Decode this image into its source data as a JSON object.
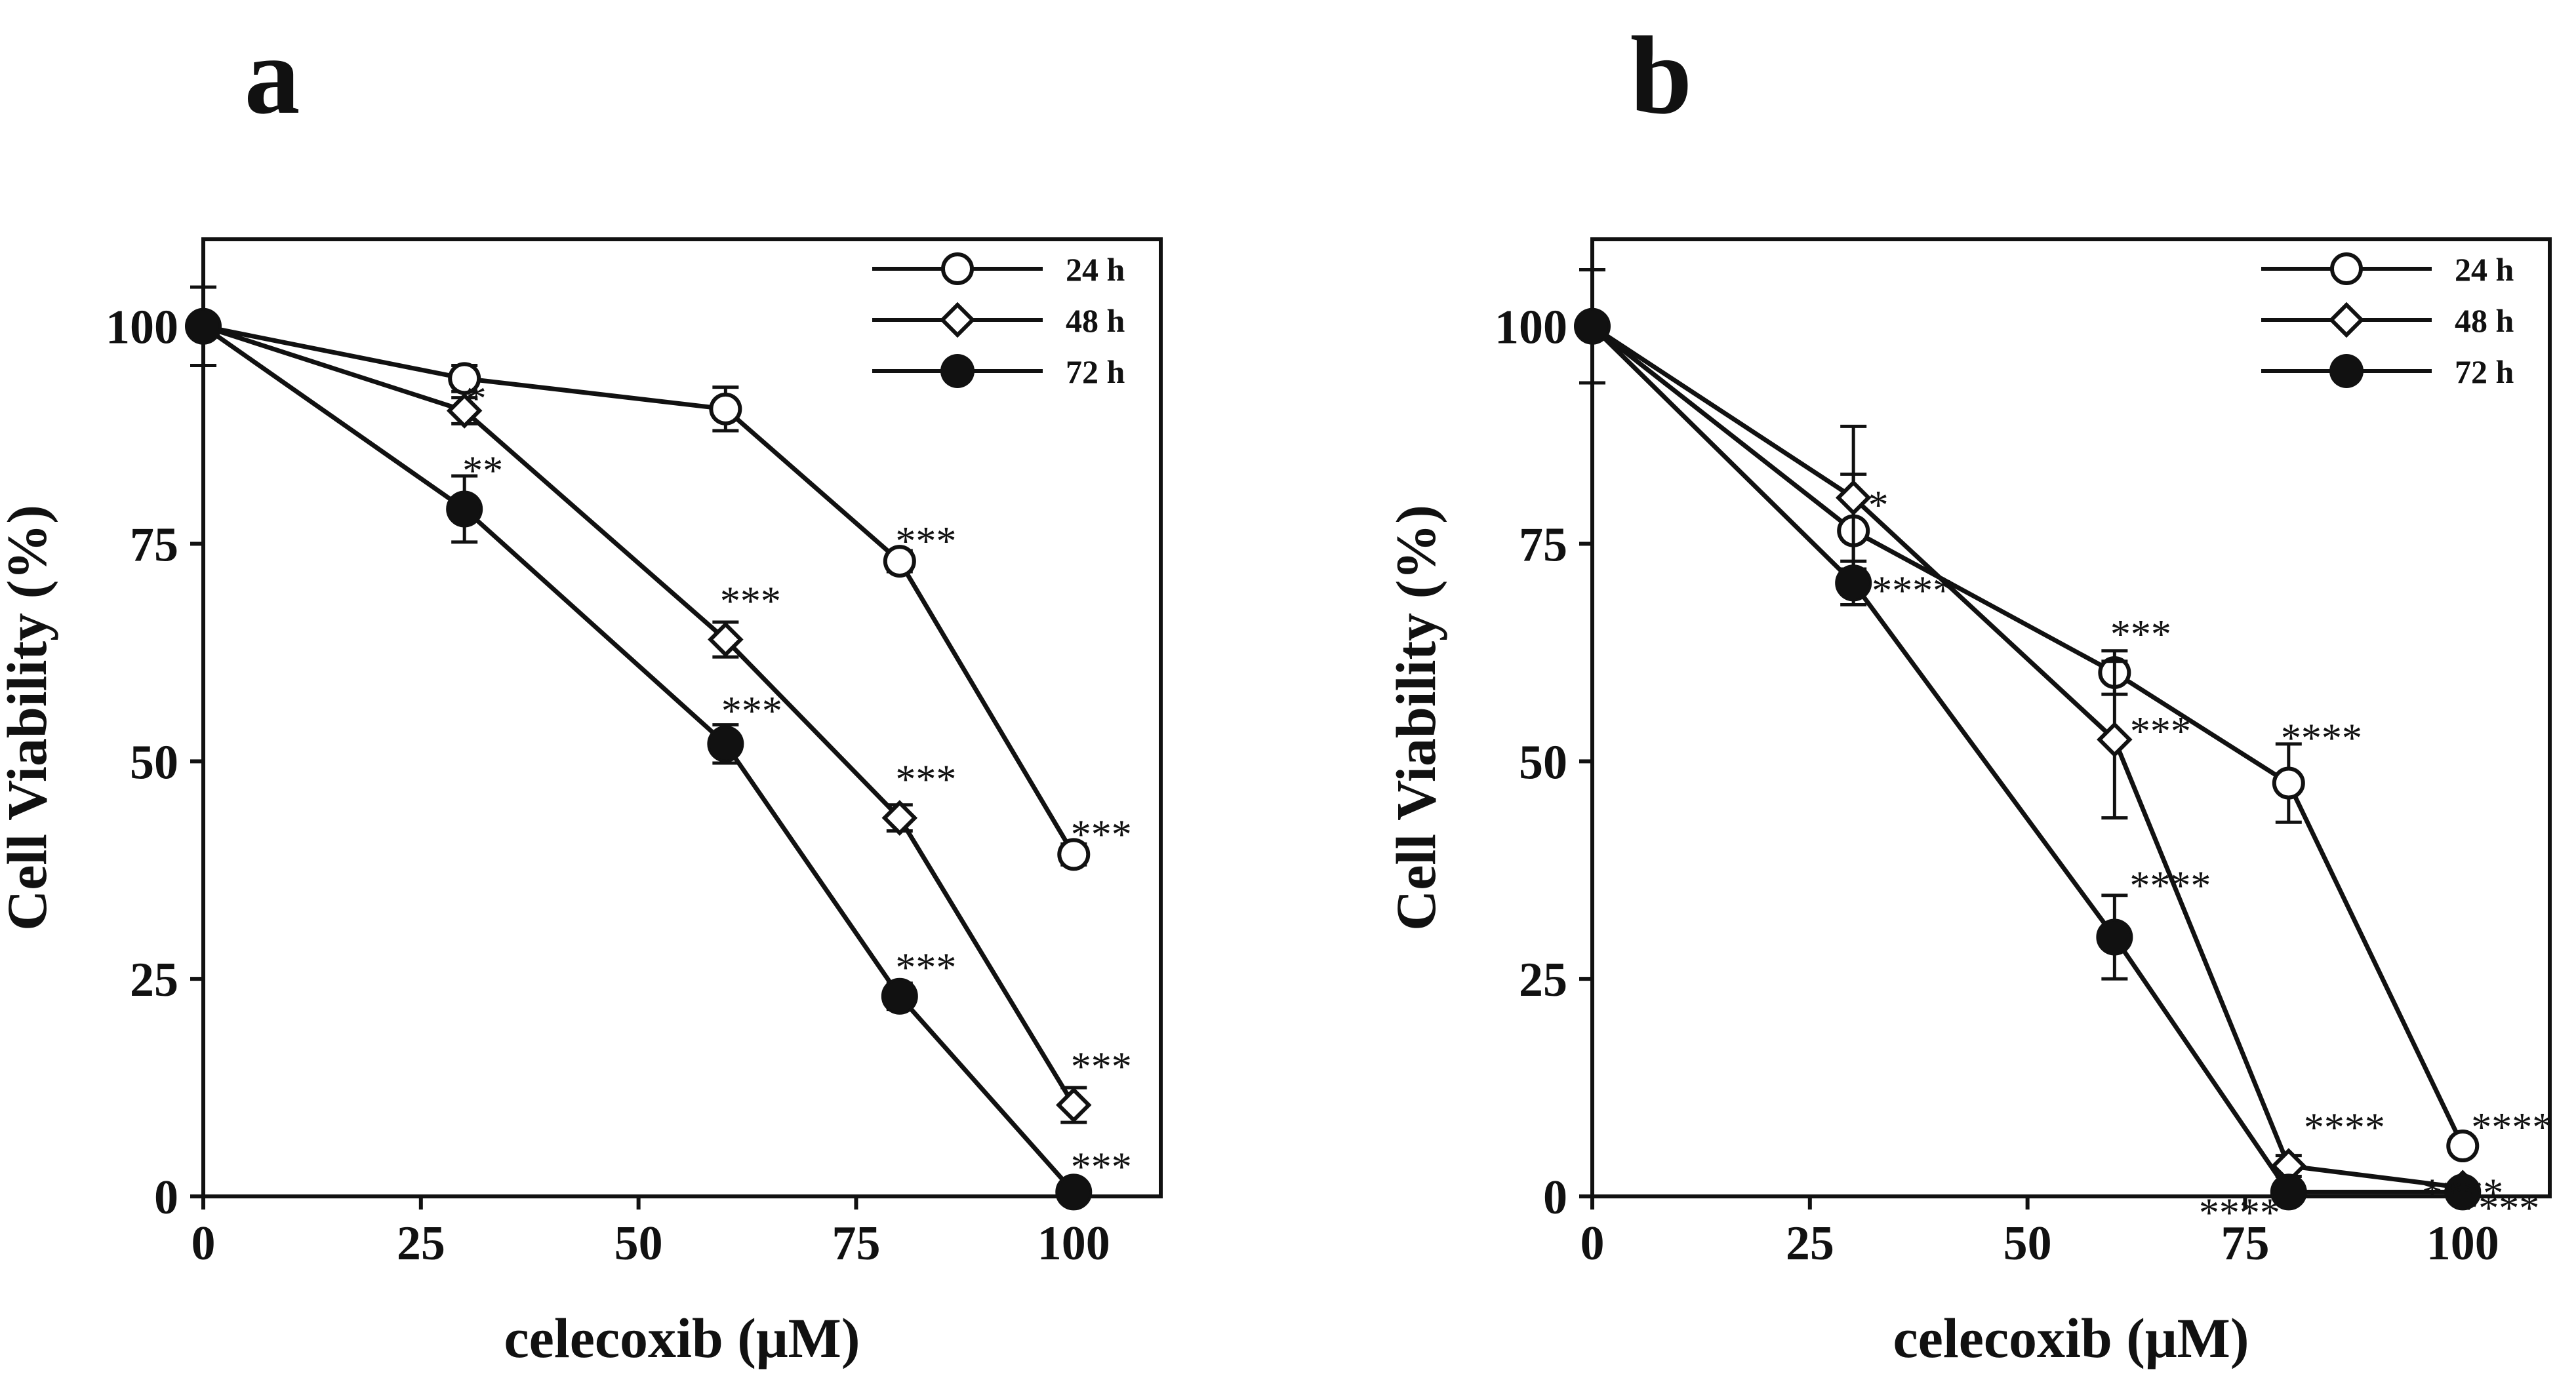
{
  "chart_data": [
    {
      "panel_label": "a",
      "type": "line",
      "title": "",
      "xlabel": "celecoxib (μM)",
      "ylabel": "Cell Viability (%)",
      "xlim": [
        0,
        110
      ],
      "ylim": [
        0,
        110
      ],
      "xticks": [
        0,
        25,
        50,
        75,
        100
      ],
      "yticks": [
        0,
        25,
        50,
        75,
        100
      ],
      "legend_position": "top-right",
      "series": [
        {
          "name": "24 h",
          "marker": "open-circle",
          "x": [
            0,
            30,
            60,
            80,
            100
          ],
          "y": [
            100,
            94,
            90.5,
            73,
            39.3
          ],
          "err": [
            4.5,
            1.5,
            2.5,
            1.2,
            1.2
          ],
          "annotations": [
            "",
            "",
            "",
            "***",
            "***"
          ]
        },
        {
          "name": "48 h",
          "marker": "open-diamond",
          "x": [
            0,
            30,
            60,
            80,
            100
          ],
          "y": [
            100,
            90.3,
            64,
            43.5,
            10.5
          ],
          "err": [
            0,
            1.5,
            2.0,
            1.5,
            2.0
          ],
          "annotations": [
            "",
            "*",
            "***",
            "***",
            "***"
          ]
        },
        {
          "name": "72 h",
          "marker": "filled-circle",
          "x": [
            0,
            30,
            60,
            80,
            100
          ],
          "y": [
            100,
            79,
            52,
            23,
            0.5
          ],
          "err": [
            0,
            3.8,
            2.2,
            1.5,
            0.5
          ],
          "annotations": [
            "",
            "**",
            "***",
            "***",
            "***"
          ]
        }
      ]
    },
    {
      "panel_label": "b",
      "type": "line",
      "title": "",
      "xlabel": "celecoxib (μM)",
      "ylabel": "Cell Viability (%)",
      "xlim": [
        0,
        110
      ],
      "ylim": [
        0,
        110
      ],
      "xticks": [
        0,
        25,
        50,
        75,
        100
      ],
      "yticks": [
        0,
        25,
        50,
        75,
        100
      ],
      "legend_position": "top-right",
      "series": [
        {
          "name": "24 h",
          "marker": "open-circle",
          "x": [
            0,
            30,
            60,
            80,
            100
          ],
          "y": [
            100,
            76.5,
            60.2,
            47.5,
            5.8
          ],
          "err": [
            6.5,
            6.5,
            2.5,
            4.5,
            1.0
          ],
          "annotations": [
            "",
            "",
            "***",
            "****",
            "****"
          ]
        },
        {
          "name": "48 h",
          "marker": "open-diamond",
          "x": [
            0,
            30,
            60,
            80,
            100
          ],
          "y": [
            100,
            80.3,
            52.5,
            3.5,
            1.0
          ],
          "err": [
            0,
            8.2,
            9.0,
            1.2,
            0.5
          ],
          "annotations": [
            "",
            "*",
            "***",
            "****",
            "****"
          ]
        },
        {
          "name": "72 h",
          "marker": "filled-circle",
          "x": [
            0,
            30,
            60,
            80,
            100
          ],
          "y": [
            100,
            70.5,
            29.8,
            0.5,
            0.5
          ],
          "err": [
            0,
            2.5,
            4.8,
            0.5,
            0.5
          ],
          "annotations": [
            "",
            "****",
            "****",
            "****",
            "****"
          ]
        }
      ]
    }
  ]
}
